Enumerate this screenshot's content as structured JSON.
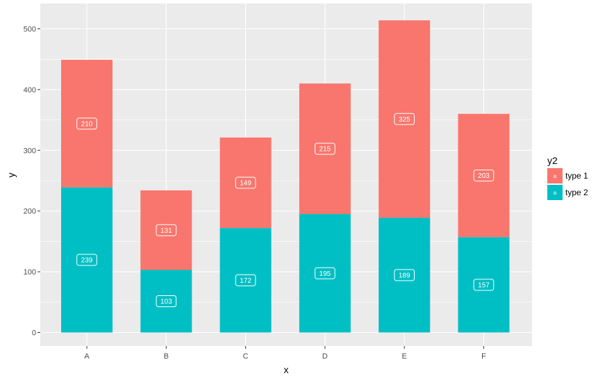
{
  "chart_data": {
    "type": "bar",
    "stacked": true,
    "categories": [
      "A",
      "B",
      "C",
      "D",
      "E",
      "F"
    ],
    "series": [
      {
        "name": "type 2",
        "values": [
          239,
          103,
          172,
          195,
          189,
          157
        ],
        "color": "#00BFC4"
      },
      {
        "name": "type 1",
        "values": [
          210,
          131,
          149,
          215,
          325,
          203
        ],
        "color": "#F8766D"
      }
    ],
    "xlabel": "x",
    "ylabel": "y",
    "ylim": [
      0,
      530
    ],
    "yticks": [
      0,
      100,
      200,
      300,
      400,
      500
    ],
    "grid": true,
    "legend": {
      "title": "y2",
      "position": "right",
      "key_letter": "a",
      "entries": [
        {
          "label": "type 1",
          "color": "#F8766D"
        },
        {
          "label": "type 2",
          "color": "#00BFC4"
        }
      ]
    },
    "panel_color": "#EBEBEB",
    "grid_color": "#FFFFFF"
  }
}
